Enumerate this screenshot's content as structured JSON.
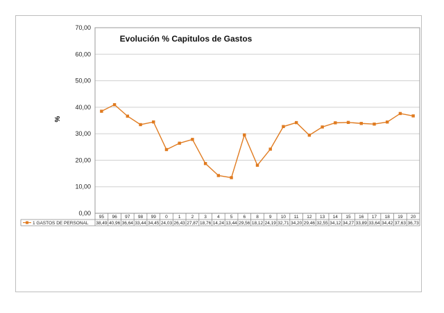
{
  "chart_data": {
    "type": "line",
    "title": "Evolución % Capitulos de Gastos",
    "ylabel": "%",
    "xlabel": "",
    "ylim": [
      0,
      70
    ],
    "yticks": [
      "0,00",
      "10,00",
      "20,00",
      "30,00",
      "40,00",
      "50,00",
      "60,00",
      "70,00"
    ],
    "ytick_values": [
      0,
      10,
      20,
      30,
      40,
      50,
      60,
      70
    ],
    "grid": true,
    "legend_placement": "data-table-bottom",
    "categories": [
      "95",
      "96",
      "97",
      "98",
      "99",
      "0",
      "1",
      "2",
      "3",
      "4",
      "5",
      "6",
      "8",
      "9",
      "10",
      "11",
      "12",
      "13",
      "14",
      "15",
      "16",
      "17",
      "18",
      "19",
      "20"
    ],
    "series": [
      {
        "name": "1 GASTOS DE PERSONAL",
        "color": "#e07b20",
        "marker": "square",
        "values": [
          38.49,
          40.96,
          36.64,
          33.44,
          34.45,
          24.03,
          26.43,
          27.87,
          18.76,
          14.24,
          13.44,
          29.56,
          18.12,
          24.19,
          32.71,
          34.2,
          29.46,
          32.55,
          34.12,
          34.27,
          33.89,
          33.64,
          34.42,
          37.63,
          36.73
        ],
        "labels": [
          "38,49",
          "40,96",
          "36,64",
          "33,44",
          "34,45",
          "24,03",
          "26,43",
          "27,87",
          "18,76",
          "14,24",
          "13,44",
          "29,56",
          "18,12",
          "24,19",
          "32,71",
          "34,20",
          "29,46",
          "32,55",
          "34,12",
          "34,27",
          "33,89",
          "33,64",
          "34,42",
          "37,63",
          "36,73"
        ]
      }
    ]
  }
}
